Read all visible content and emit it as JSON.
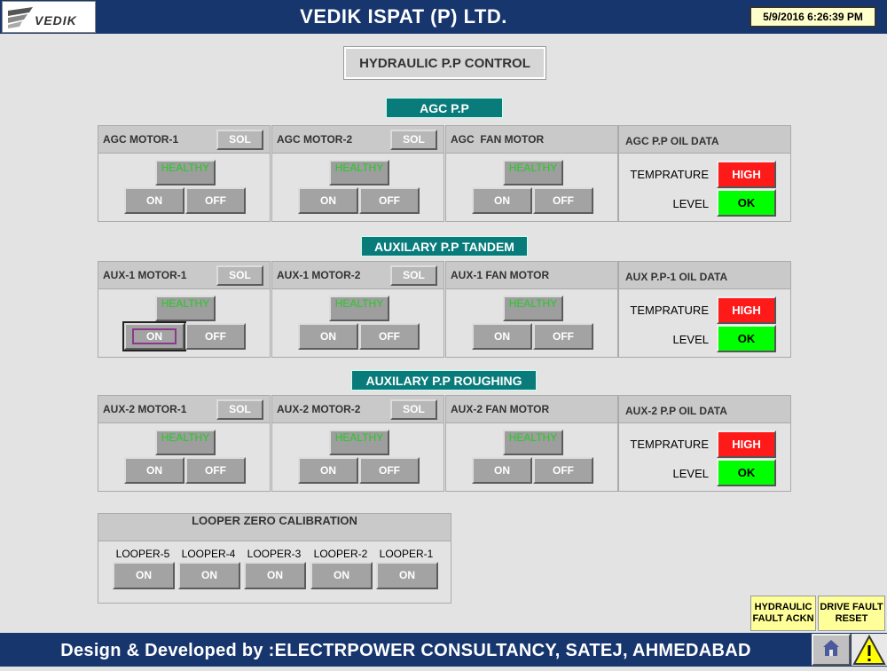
{
  "header": {
    "logo_text": "VEDIK",
    "company": "VEDIK ISPAT (P) LTD.",
    "datetime": "5/9/2016 6:26:39 PM"
  },
  "page_title": "HYDRAULIC P.P CONTROL",
  "sections": [
    {
      "title": "AGC P.P",
      "motors": [
        {
          "name": "AGC MOTOR-1",
          "sol": "SOL",
          "status": "HEALTHY",
          "on": "ON",
          "off": "OFF"
        },
        {
          "name": "AGC MOTOR-2",
          "sol": "SOL",
          "status": "HEALTHY",
          "on": "ON",
          "off": "OFF"
        },
        {
          "name": "AGC  FAN MOTOR",
          "status": "HEALTHY",
          "on": "ON",
          "off": "OFF"
        }
      ],
      "oil": {
        "title": "AGC P.P OIL DATA",
        "temp_label": "TEMPRATURE",
        "temp_value": "HIGH",
        "level_label": "LEVEL",
        "level_value": "OK"
      }
    },
    {
      "title": "AUXILARY P.P TANDEM",
      "motors": [
        {
          "name": "AUX-1 MOTOR-1",
          "sol": "SOL",
          "status": "HEALTHY",
          "on": "ON",
          "off": "OFF"
        },
        {
          "name": "AUX-1 MOTOR-2",
          "sol": "SOL",
          "status": "HEALTHY",
          "on": "ON",
          "off": "OFF"
        },
        {
          "name": "AUX-1 FAN MOTOR",
          "status": "HEALTHY",
          "on": "ON",
          "off": "OFF"
        }
      ],
      "oil": {
        "title": "AUX P.P-1 OIL DATA",
        "temp_label": "TEMPRATURE",
        "temp_value": "HIGH",
        "level_label": "LEVEL",
        "level_value": "OK"
      }
    },
    {
      "title": "AUXILARY P.P ROUGHING",
      "motors": [
        {
          "name": "AUX-2 MOTOR-1",
          "sol": "SOL",
          "status": "HEALTHY",
          "on": "ON",
          "off": "OFF"
        },
        {
          "name": "AUX-2 MOTOR-2",
          "sol": "SOL",
          "status": "HEALTHY",
          "on": "ON",
          "off": "OFF"
        },
        {
          "name": "AUX-2 FAN MOTOR",
          "status": "HEALTHY",
          "on": "ON",
          "off": "OFF"
        }
      ],
      "oil": {
        "title": "AUX-2 P.P OIL DATA",
        "temp_label": "TEMPRATURE",
        "temp_value": "HIGH",
        "level_label": "LEVEL",
        "level_value": "OK"
      }
    }
  ],
  "looper": {
    "title": "LOOPER ZERO CALIBRATION",
    "items": [
      {
        "label": "LOOPER-5",
        "button": "ON"
      },
      {
        "label": "LOOPER-4",
        "button": "ON"
      },
      {
        "label": "LOOPER-3",
        "button": "ON"
      },
      {
        "label": "LOOPER-2",
        "button": "ON"
      },
      {
        "label": "LOOPER-1",
        "button": "ON"
      }
    ]
  },
  "buttons": {
    "hydraulic_fault_ackn_line1": "HYDRAULIC",
    "hydraulic_fault_ackn_line2": "FAULT ACKN",
    "drive_fault_reset_line1": "DRIVE FAULT",
    "drive_fault_reset_line2": "RESET"
  },
  "footer": "Design & Developed by :ELECTRPOWER CONSULTANCY, SATEJ, AHMEDABAD",
  "colors": {
    "header_bg": "#17366e",
    "section_bg": "#0a7b7b",
    "alarm_high": "#ff1a1a",
    "status_ok": "#00ff00",
    "healthy_text": "#22cc22"
  },
  "icons": {
    "home": "home-icon",
    "warning": "warning-icon"
  }
}
